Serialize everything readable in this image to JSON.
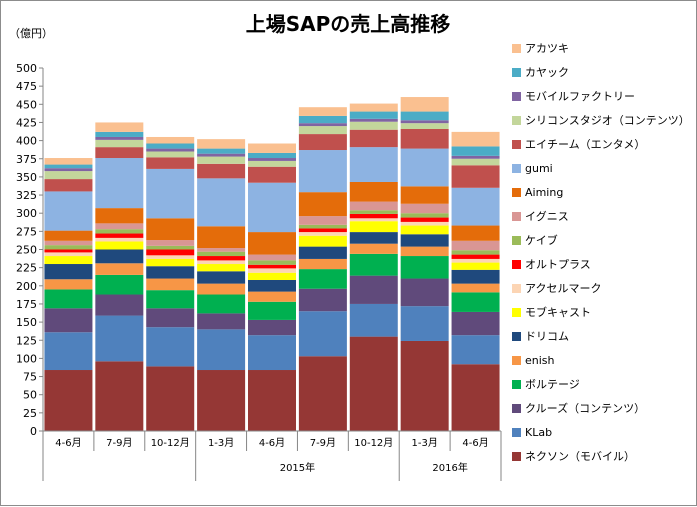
{
  "chart_data": {
    "type": "bar",
    "stacked": true,
    "title": "上場SAPの売上高推移",
    "ylabel": "（億円）",
    "xlabel": "",
    "ylim": [
      0,
      500
    ],
    "yticks": [
      0,
      25,
      50,
      75,
      100,
      125,
      150,
      175,
      200,
      225,
      250,
      275,
      300,
      325,
      350,
      375,
      400,
      425,
      450,
      475,
      500
    ],
    "grid": false,
    "legend_position": "right",
    "categories": [
      "4-6月",
      "7-9月",
      "10-12月",
      "1-3月",
      "4-6月",
      "7-9月",
      "10-12月",
      "1-3月",
      "4-6月"
    ],
    "year_groups": [
      {
        "label": "2015年",
        "from": 3,
        "to": 6
      },
      {
        "label": "2016年",
        "from": 7,
        "to": 8
      }
    ],
    "series": [
      {
        "name": "ネクソン（モバイル）",
        "color": "#953735",
        "values": [
          84,
          96,
          89,
          84,
          84,
          103,
          130,
          124,
          92
        ]
      },
      {
        "name": "KLab",
        "color": "#4f81bd",
        "values": [
          52,
          63,
          54,
          56,
          48,
          62,
          45,
          48,
          40
        ]
      },
      {
        "name": "クルーズ（コンテンツ）",
        "color": "#604a7b",
        "values": [
          33,
          29,
          26,
          22,
          21,
          31,
          39,
          38,
          32
        ]
      },
      {
        "name": "ボルテージ",
        "color": "#00b050",
        "values": [
          26,
          27,
          25,
          26,
          25,
          27,
          30,
          31,
          27
        ]
      },
      {
        "name": "enish",
        "color": "#f79646",
        "values": [
          14,
          16,
          16,
          15,
          14,
          14,
          14,
          13,
          12
        ]
      },
      {
        "name": "ドリコム",
        "color": "#1f497d",
        "values": [
          21,
          19,
          17,
          17,
          16,
          17,
          16,
          17,
          19
        ]
      },
      {
        "name": "モブキャスト",
        "color": "#ffff00",
        "values": [
          11,
          11,
          10,
          10,
          10,
          15,
          15,
          12,
          10
        ]
      },
      {
        "name": "アクセルマーク",
        "color": "#fcd5b4",
        "values": [
          5,
          5,
          5,
          5,
          6,
          5,
          4,
          5,
          5
        ]
      },
      {
        "name": "オルトプラス",
        "color": "#ff0000",
        "values": [
          4,
          6,
          8,
          6,
          5,
          5,
          6,
          6,
          6
        ]
      },
      {
        "name": "ケイブ",
        "color": "#9bbb59",
        "values": [
          6,
          6,
          5,
          6,
          6,
          5,
          5,
          6,
          6
        ]
      },
      {
        "name": "イグニス",
        "color": "#d99694",
        "values": [
          6,
          8,
          8,
          5,
          8,
          12,
          12,
          13,
          13
        ]
      },
      {
        "name": "Aiming",
        "color": "#e46c0a",
        "values": [
          14,
          21,
          30,
          30,
          31,
          33,
          27,
          24,
          21
        ]
      },
      {
        "name": "gumi",
        "color": "#8db3e2",
        "values": [
          54,
          69,
          68,
          66,
          68,
          58,
          48,
          52,
          52
        ]
      },
      {
        "name": "エイチーム（エンタメ）",
        "color": "#c0504d",
        "values": [
          17,
          15,
          16,
          20,
          22,
          22,
          24,
          27,
          31
        ]
      },
      {
        "name": "シリコンスタジオ（コンテンツ）",
        "color": "#c3d69b",
        "values": [
          11,
          10,
          8,
          10,
          8,
          11,
          11,
          8,
          9
        ]
      },
      {
        "name": "モバイルファクトリー",
        "color": "#8064a2",
        "values": [
          4,
          4,
          4,
          4,
          4,
          4,
          4,
          4,
          4
        ]
      },
      {
        "name": "カヤック",
        "color": "#4bacc6",
        "values": [
          5,
          7,
          7,
          7,
          7,
          10,
          10,
          12,
          13
        ]
      },
      {
        "name": "アカツキ",
        "color": "#fac090",
        "values": [
          9,
          13,
          9,
          13,
          13,
          12,
          11,
          20,
          20
        ]
      }
    ]
  }
}
